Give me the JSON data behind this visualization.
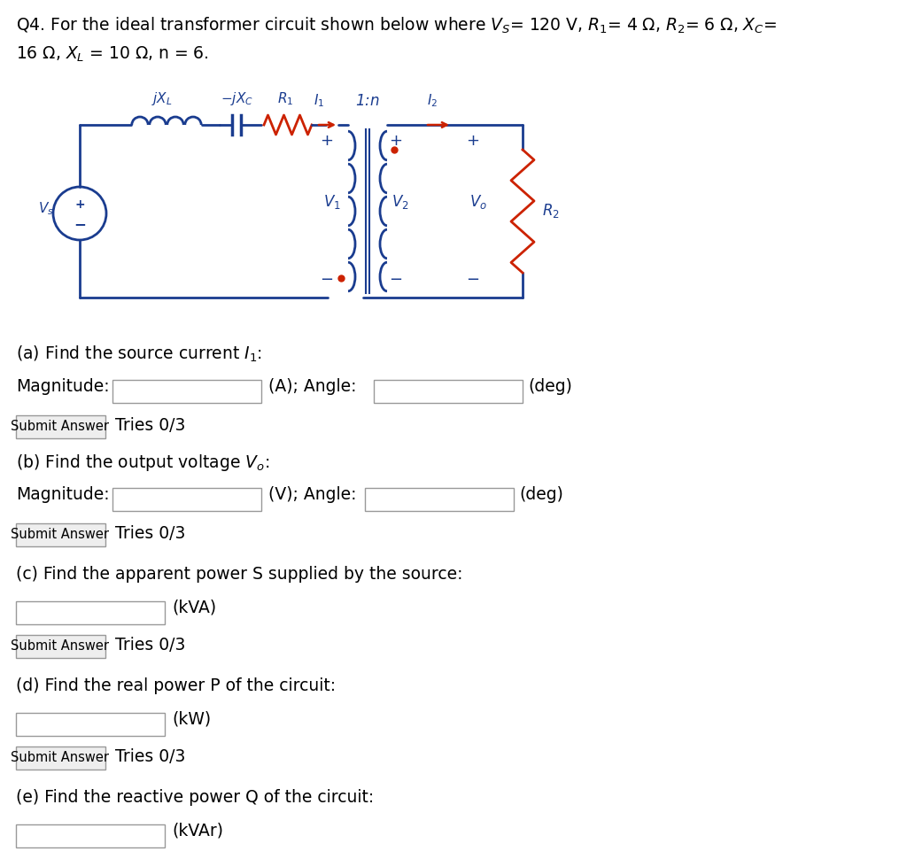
{
  "bg_color": "#ffffff",
  "text_color": "#000000",
  "circuit_color": "#1a3c8f",
  "red_color": "#cc2200",
  "line1": "Q4. For the ideal transformer circuit shown below where $V_S$= 120 V, $R_1$= 4 $\\Omega$, $R_2$= 6 $\\Omega$, $X_C$=",
  "line2": "16 $\\Omega$, $X_L$ = 10 $\\Omega$, n = 6.",
  "submit_text": "Submit Answer",
  "tries_text": "Tries 0/3",
  "font_size_header": 13.5,
  "font_size_body": 13.5,
  "font_size_small": 10.5,
  "font_size_circuit": 11
}
